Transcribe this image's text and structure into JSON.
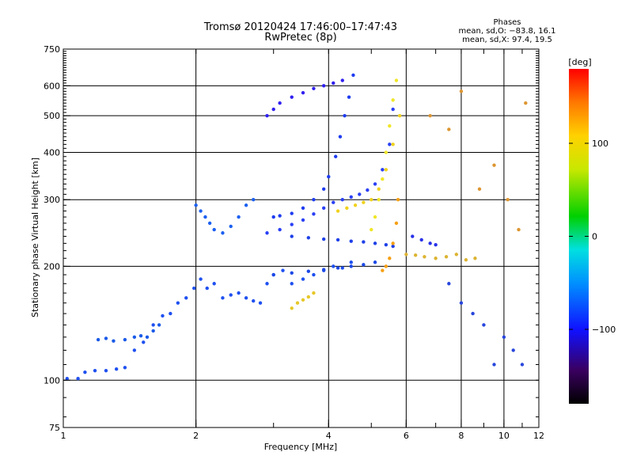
{
  "title": "Tromsø 20120424 17:46:00–17:47:43",
  "subtitle": "RwPretec (8p)",
  "phases_box": {
    "heading": "Phases",
    "line1": "mean, sd,O: −83.8, 16.1",
    "line2": "mean, sd,X:  97.4, 19.5"
  },
  "chart_data": {
    "type": "scatter",
    "title": "Tromsø 20120424 17:46:00–17:47:43",
    "subtitle": "RwPretec (8p)",
    "xlabel": "Frequency [MHz]",
    "ylabel": "Stationary phase Virtual Height [km]",
    "xscale": "log",
    "yscale": "log",
    "xlim": [
      1,
      12
    ],
    "ylim": [
      75,
      750
    ],
    "xticks": [
      1,
      2,
      4,
      6,
      8,
      10,
      12
    ],
    "xtick_labels": [
      "1",
      "2",
      "4",
      "6",
      "8",
      "10",
      "12"
    ],
    "yticks": [
      75,
      100,
      200,
      300,
      400,
      500,
      600,
      750
    ],
    "ytick_labels": [
      "75",
      "100",
      "200",
      "300",
      "400",
      "500",
      "600",
      "750"
    ],
    "grid": true,
    "colorbar": {
      "label": "[deg]",
      "range": [
        -180,
        180
      ],
      "ticks": [
        100,
        0,
        -100
      ],
      "tick_labels": [
        "100",
        "0",
        "−100"
      ],
      "colormap": "rainbow"
    },
    "series": [
      {
        "color": "#1f50f0",
        "x": [
          1.02,
          1.08,
          1.12,
          1.18,
          1.25,
          1.32,
          1.38,
          1.45,
          1.52,
          1.6,
          1.68,
          1.75,
          1.82,
          1.9,
          1.98,
          2.05,
          2.12,
          2.2,
          2.3,
          2.4,
          2.5,
          2.6,
          2.7,
          2.8,
          2.9,
          3.0,
          3.15,
          3.3,
          3.5,
          3.7,
          3.9,
          4.1,
          4.3,
          4.5
        ],
        "y": [
          101,
          101,
          105,
          106,
          106,
          107,
          108,
          120,
          126,
          140,
          148,
          150,
          160,
          165,
          175,
          185,
          175,
          180,
          165,
          168,
          170,
          165,
          162,
          160,
          180,
          190,
          195,
          180,
          185,
          190,
          195,
          200,
          198,
          205
        ]
      },
      {
        "color": "#1a5ae8",
        "x": [
          1.2,
          1.25,
          1.3,
          1.38,
          1.45,
          1.5,
          1.55,
          1.6,
          1.65
        ],
        "y": [
          128,
          129,
          127,
          128,
          130,
          131,
          130,
          135,
          140
        ]
      },
      {
        "color": "#1e3cf0",
        "x": [
          3.0,
          3.1,
          3.3,
          3.5,
          3.7,
          3.9,
          4.0,
          4.15,
          4.25,
          4.35,
          4.45,
          4.55
        ],
        "y": [
          270,
          272,
          276,
          285,
          300,
          320,
          345,
          390,
          440,
          500,
          560,
          640
        ]
      },
      {
        "color": "#2a40f5",
        "x": [
          2.9,
          3.1,
          3.3,
          3.5,
          3.7,
          3.9,
          4.1,
          4.3,
          4.5,
          4.7,
          4.9,
          5.1,
          5.3,
          5.5,
          5.6
        ],
        "y": [
          245,
          250,
          258,
          265,
          275,
          285,
          295,
          300,
          305,
          310,
          318,
          330,
          360,
          420,
          520
        ]
      },
      {
        "color": "#3020f0",
        "x": [
          2.9,
          3.0,
          3.1,
          3.3,
          3.5,
          3.7,
          3.9,
          4.1,
          4.3
        ],
        "y": [
          500,
          520,
          540,
          560,
          575,
          590,
          600,
          610,
          620
        ]
      },
      {
        "color": "#1c60f0",
        "x": [
          2.0,
          2.05,
          2.1,
          2.15,
          2.2,
          2.3,
          2.4,
          2.5,
          2.6,
          2.7
        ],
        "y": [
          290,
          280,
          270,
          260,
          250,
          245,
          255,
          270,
          290,
          300
        ]
      },
      {
        "color": "#1e40e8",
        "x": [
          3.3,
          3.6,
          3.9,
          4.2,
          4.5,
          4.8,
          5.1,
          5.4,
          5.6
        ],
        "y": [
          240,
          238,
          236,
          235,
          233,
          232,
          230,
          228,
          226
        ]
      },
      {
        "color": "#1c48e6",
        "x": [
          3.0,
          3.3,
          3.6,
          3.9,
          4.2,
          4.5,
          4.8,
          5.1
        ],
        "y": [
          190,
          192,
          194,
          196,
          198,
          200,
          202,
          205
        ]
      },
      {
        "color": "#f0d21e",
        "x": [
          4.2,
          4.4,
          4.6,
          4.8,
          5.0,
          5.2,
          5.4,
          5.6,
          5.8
        ],
        "y": [
          280,
          285,
          290,
          295,
          300,
          320,
          360,
          420,
          500
        ]
      },
      {
        "color": "#f0e628",
        "x": [
          5.0,
          5.1,
          5.2,
          5.3,
          5.4,
          5.5,
          5.6,
          5.7
        ],
        "y": [
          250,
          270,
          300,
          340,
          400,
          470,
          550,
          620
        ]
      },
      {
        "color": "#f5a014",
        "x": [
          5.3,
          5.4,
          5.5,
          5.6,
          5.7,
          5.75
        ],
        "y": [
          195,
          200,
          210,
          230,
          260,
          300
        ]
      },
      {
        "color": "#e6c828",
        "x": [
          3.3,
          3.4,
          3.5,
          3.6,
          3.7
        ],
        "y": [
          155,
          160,
          163,
          166,
          170
        ]
      },
      {
        "color": "#dcb432",
        "x": [
          6.0,
          6.3,
          6.6,
          7.0,
          7.4,
          7.8,
          8.2,
          8.6
        ],
        "y": [
          215,
          214,
          212,
          210,
          212,
          215,
          208,
          210
        ]
      },
      {
        "color": "#2832e8",
        "x": [
          6.2,
          6.5,
          6.8,
          7.0
        ],
        "y": [
          240,
          235,
          230,
          228
        ]
      },
      {
        "color": "#dc9632",
        "x": [
          6.8,
          7.5,
          8.0,
          8.8,
          9.5,
          10.2,
          10.8,
          11.2
        ],
        "y": [
          500,
          460,
          580,
          320,
          370,
          300,
          250,
          540
        ]
      },
      {
        "color": "#2846dc",
        "x": [
          7.5,
          8.0,
          8.5,
          9.0,
          9.5,
          10.0,
          10.5,
          11.0
        ],
        "y": [
          180,
          160,
          150,
          140,
          110,
          130,
          120,
          110
        ]
      }
    ]
  }
}
